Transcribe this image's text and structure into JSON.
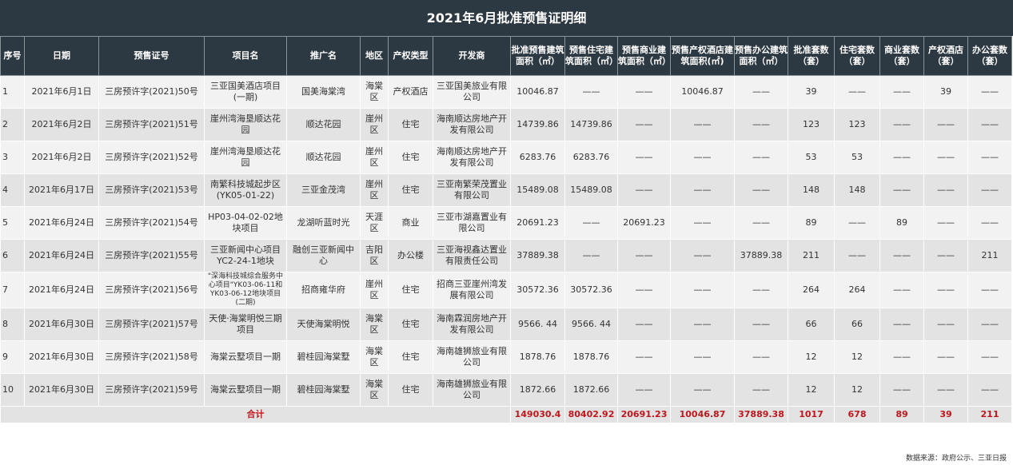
{
  "title": "2021年6月批准预售证明细",
  "headers": [
    "序号",
    "日期",
    "预售证号",
    "项目名",
    "推广名",
    "地区",
    "产权类型",
    "开发商",
    "批准预售建筑面积（㎡）",
    "预售住宅建筑面积（㎡）",
    "预售商业建筑面积（㎡）",
    "预售产权酒店建筑面积(㎡)",
    "预售办公建筑面积（㎡）",
    "批准套数（套）",
    "住宅套数（套）",
    "商业套数（套）",
    "产权酒店（套）",
    "办公套数（套）"
  ],
  "rows": [
    [
      "1",
      "2021年6月1日",
      "三房预许字(2021)50号",
      "三亚国美酒店项目(一期)",
      "国美海棠湾",
      "海棠区",
      "产权酒店",
      "三亚国美旅业有限公司",
      "10046.87",
      "——",
      "——",
      "10046.87",
      "——",
      "39",
      "——",
      "——",
      "39",
      "——"
    ],
    [
      "2",
      "2021年6月2日",
      "三房预许字(2021)51号",
      "崖州湾海垦顺达花园",
      "顺达花园",
      "崖州区",
      "住宅",
      "海南顺达房地产开发有限公司",
      "14739.86",
      "14739.86",
      "——",
      "——",
      "——",
      "123",
      "123",
      "——",
      "——",
      "——"
    ],
    [
      "3",
      "2021年6月2日",
      "三房预许字(2021)52号",
      "崖州湾海垦顺达花园",
      "顺达花园",
      "崖州区",
      "住宅",
      "海南顺达房地产开发有限公司",
      "6283.76",
      "6283.76",
      "——",
      "——",
      "——",
      "53",
      "53",
      "——",
      "——",
      "——"
    ],
    [
      "4",
      "2021年6月17日",
      "三房预许字(2021)53号",
      "南繁科技城起步区(YK05-01-22)",
      "三亚金茂湾",
      "崖州区",
      "住宅",
      "三亚南繁荣茂置业有限公司",
      "15489.08",
      "15489.08",
      "——",
      "——",
      "——",
      "148",
      "148",
      "——",
      "——",
      "——"
    ],
    [
      "5",
      "2021年6月24日",
      "三房预许字(2021)54号",
      "HP03-04-02-02地块项目",
      "龙湖听蓝时光",
      "天涯区",
      "商业",
      "三亚市湖嘉置业有限公司",
      "20691.23",
      "——",
      "20691.23",
      "——",
      "——",
      "89",
      "——",
      "89",
      "——",
      "——"
    ],
    [
      "6",
      "2021年6月24日",
      "三房预许字(2021)55号",
      "三亚新闻中心项目YC2-24-1地块",
      "融创三亚新闻中心",
      "吉阳区",
      "办公楼",
      "三亚海视鑫达置业有限责任公司",
      "37889.38",
      "——",
      "——",
      "——",
      "37889.38",
      "211",
      "——",
      "——",
      "——",
      "211"
    ],
    [
      "7",
      "2021年6月24日",
      "三房预许字(2021)56号",
      "\"深海科技城综合服务中心项目\"YK03-06-11和YK03-06-12地块项目(二期)",
      "招商雍华府",
      "崖州区",
      "住宅",
      "招商三亚崖州湾发展有限公司",
      "30572.36",
      "30572.36",
      "——",
      "——",
      "——",
      "264",
      "264",
      "——",
      "——",
      "——"
    ],
    [
      "8",
      "2021年6月30日",
      "三房预许字(2021)57号",
      "天使·海棠明悦三期项目",
      "天使海棠明悦",
      "海棠区",
      "住宅",
      "海南霖润房地产开发有限公司",
      "9566. 44",
      "9566. 44",
      "——",
      "——",
      "——",
      "66",
      "66",
      "——",
      "——",
      "——"
    ],
    [
      "9",
      "2021年6月30日",
      "三房预许字(2021)58号",
      "海棠云墅项目一期",
      "碧桂园海棠墅",
      "海棠区",
      "住宅",
      "海南雄狮旅业有限公司",
      "1878.76",
      "1878.76",
      "——",
      "——",
      "——",
      "12",
      "12",
      "——",
      "——",
      "——"
    ],
    [
      "10",
      "2021年6月30日",
      "三房预许字(2021)59号",
      "海棠云墅项目一期",
      "碧桂园海棠墅",
      "海棠区",
      "住宅",
      "海南雄狮旅业有限公司",
      "1872.66",
      "1872.66",
      "——",
      "——",
      "——",
      "12",
      "12",
      "——",
      "——",
      "——"
    ]
  ],
  "total": {
    "label": "合计",
    "values": [
      "149030.4",
      "80402.92",
      "20691.23",
      "10046.87",
      "37889.38",
      "1017",
      "678",
      "89",
      "39",
      "211"
    ]
  },
  "source": "数据来源：政府公示、三亚日报"
}
